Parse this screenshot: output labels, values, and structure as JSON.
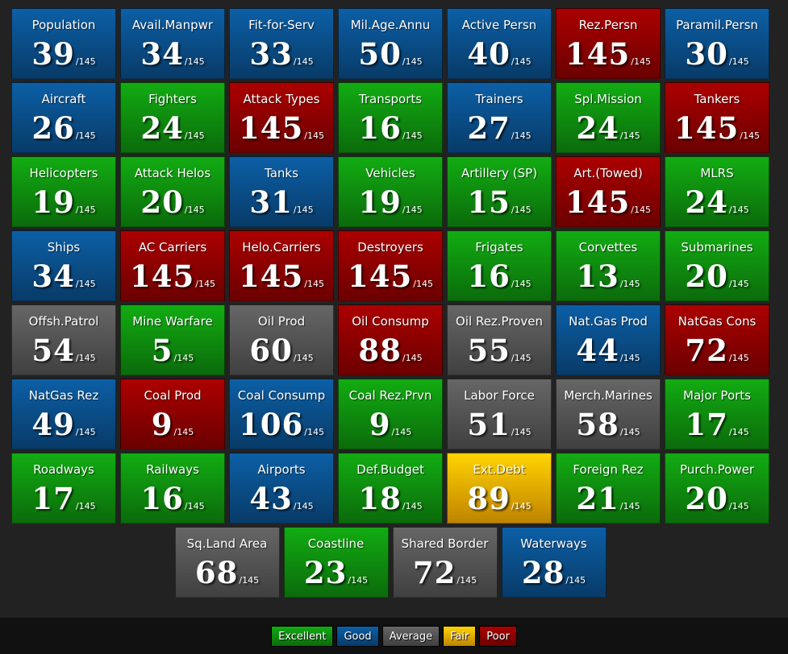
{
  "tiles": [
    {
      "label": "Population",
      "rank": 39,
      "total": "/145",
      "rating": "Good"
    },
    {
      "label": "Avail.Manpwr",
      "rank": 34,
      "total": "/145",
      "rating": "Good"
    },
    {
      "label": "Fit-for-Serv",
      "rank": 33,
      "total": "/145",
      "rating": "Good"
    },
    {
      "label": "Mil.Age.Annu",
      "rank": 50,
      "total": "/145",
      "rating": "Good"
    },
    {
      "label": "Active Persn",
      "rank": 40,
      "total": "/145",
      "rating": "Good"
    },
    {
      "label": "Rez.Persn",
      "rank": 145,
      "total": "/145",
      "rating": "Poor"
    },
    {
      "label": "Paramil.Persn",
      "rank": 30,
      "total": "/145",
      "rating": "Good"
    },
    {
      "label": "Aircraft",
      "rank": 26,
      "total": "/145",
      "rating": "Good"
    },
    {
      "label": "Fighters",
      "rank": 24,
      "total": "/145",
      "rating": "Excellent"
    },
    {
      "label": "Attack Types",
      "rank": 145,
      "total": "/145",
      "rating": "Poor"
    },
    {
      "label": "Transports",
      "rank": 16,
      "total": "/145",
      "rating": "Excellent"
    },
    {
      "label": "Trainers",
      "rank": 27,
      "total": "/145",
      "rating": "Good"
    },
    {
      "label": "Spl.Mission",
      "rank": 24,
      "total": "/145",
      "rating": "Excellent"
    },
    {
      "label": "Tankers",
      "rank": 145,
      "total": "/145",
      "rating": "Poor"
    },
    {
      "label": "Helicopters",
      "rank": 19,
      "total": "/145",
      "rating": "Excellent"
    },
    {
      "label": "Attack Helos",
      "rank": 20,
      "total": "/145",
      "rating": "Excellent"
    },
    {
      "label": "Tanks",
      "rank": 31,
      "total": "/145",
      "rating": "Good"
    },
    {
      "label": "Vehicles",
      "rank": 19,
      "total": "/145",
      "rating": "Excellent"
    },
    {
      "label": "Artillery (SP)",
      "rank": 15,
      "total": "/145",
      "rating": "Excellent"
    },
    {
      "label": "Art.(Towed)",
      "rank": 145,
      "total": "/145",
      "rating": "Poor"
    },
    {
      "label": "MLRS",
      "rank": 24,
      "total": "/145",
      "rating": "Excellent"
    },
    {
      "label": "Ships",
      "rank": 34,
      "total": "/145",
      "rating": "Good"
    },
    {
      "label": "AC Carriers",
      "rank": 145,
      "total": "/145",
      "rating": "Poor"
    },
    {
      "label": "Helo.Carriers",
      "rank": 145,
      "total": "/145",
      "rating": "Poor"
    },
    {
      "label": "Destroyers",
      "rank": 145,
      "total": "/145",
      "rating": "Poor"
    },
    {
      "label": "Frigates",
      "rank": 16,
      "total": "/145",
      "rating": "Excellent"
    },
    {
      "label": "Corvettes",
      "rank": 13,
      "total": "/145",
      "rating": "Excellent"
    },
    {
      "label": "Submarines",
      "rank": 20,
      "total": "/145",
      "rating": "Excellent"
    },
    {
      "label": "Offsh.Patrol",
      "rank": 54,
      "total": "/145",
      "rating": "Average"
    },
    {
      "label": "Mine Warfare",
      "rank": 5,
      "total": "/145",
      "rating": "Excellent"
    },
    {
      "label": "Oil Prod",
      "rank": 60,
      "total": "/145",
      "rating": "Average"
    },
    {
      "label": "Oil Consump",
      "rank": 88,
      "total": "/145",
      "rating": "Poor"
    },
    {
      "label": "Oil Rez.Proven",
      "rank": 55,
      "total": "/145",
      "rating": "Average"
    },
    {
      "label": "Nat.Gas Prod",
      "rank": 44,
      "total": "/145",
      "rating": "Good"
    },
    {
      "label": "NatGas Cons",
      "rank": 72,
      "total": "/145",
      "rating": "Poor"
    },
    {
      "label": "NatGas Rez",
      "rank": 49,
      "total": "/145",
      "rating": "Good"
    },
    {
      "label": "Coal Prod",
      "rank": 9,
      "total": "/145",
      "rating": "Poor"
    },
    {
      "label": "Coal Consump",
      "rank": 106,
      "total": "/145",
      "rating": "Good"
    },
    {
      "label": "Coal Rez.Prvn",
      "rank": 9,
      "total": "/145",
      "rating": "Excellent"
    },
    {
      "label": "Labor Force",
      "rank": 51,
      "total": "/145",
      "rating": "Average"
    },
    {
      "label": "Merch.Marines",
      "rank": 58,
      "total": "/145",
      "rating": "Average"
    },
    {
      "label": "Major Ports",
      "rank": 17,
      "total": "/145",
      "rating": "Excellent"
    },
    {
      "label": "Roadways",
      "rank": 17,
      "total": "/145",
      "rating": "Excellent"
    },
    {
      "label": "Railways",
      "rank": 16,
      "total": "/145",
      "rating": "Excellent"
    },
    {
      "label": "Airports",
      "rank": 43,
      "total": "/145",
      "rating": "Good"
    },
    {
      "label": "Def.Budget",
      "rank": 18,
      "total": "/145",
      "rating": "Excellent"
    },
    {
      "label": "Ext.Debt",
      "rank": 89,
      "total": "/145",
      "rating": "Fair"
    },
    {
      "label": "Foreign Rez",
      "rank": 21,
      "total": "/145",
      "rating": "Excellent"
    },
    {
      "label": "Purch.Power",
      "rank": 20,
      "total": "/145",
      "rating": "Excellent"
    },
    {
      "label": "Sq.Land Area",
      "rank": 68,
      "total": "/145",
      "rating": "Average"
    },
    {
      "label": "Coastline",
      "rank": 23,
      "total": "/145",
      "rating": "Excellent"
    },
    {
      "label": "Shared Border",
      "rank": 72,
      "total": "/145",
      "rating": "Average"
    },
    {
      "label": "Waterways",
      "rank": 28,
      "total": "/145",
      "rating": "Good"
    }
  ],
  "legend": [
    {
      "label": "Excellent",
      "color": "#0f8f0f"
    },
    {
      "label": "Good",
      "color": "#0a4f8a"
    },
    {
      "label": "Average",
      "color": "#555555"
    },
    {
      "label": "Fair",
      "color": "#ffb000"
    },
    {
      "label": "Poor",
      "color": "#8f0000"
    }
  ]
}
